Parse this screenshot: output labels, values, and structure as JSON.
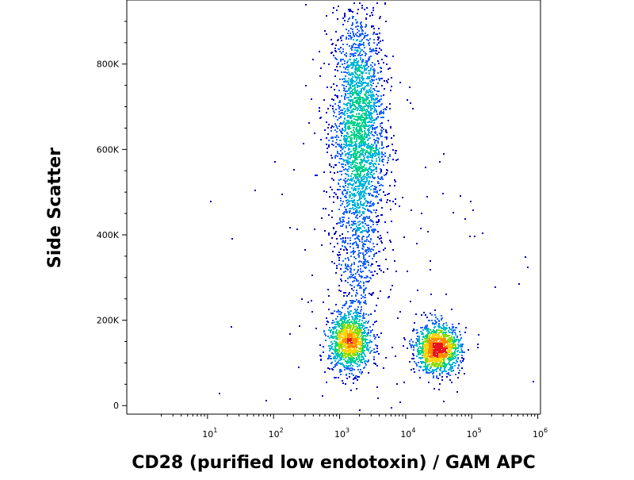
{
  "chart_data": {
    "type": "scatter",
    "subtype": "flow-cytometry-density-dot-plot",
    "xlabel": "CD28 (purified low endotoxin) / GAM APC",
    "ylabel": "Side Scatter",
    "x_scale": "log",
    "xlim": [
      0.6,
      1100000
    ],
    "ylim": [
      -20000,
      950000
    ],
    "x_ticks": [
      {
        "value": 10,
        "base": "10",
        "exp": "1"
      },
      {
        "value": 100,
        "base": "10",
        "exp": "2"
      },
      {
        "value": 1000,
        "base": "10",
        "exp": "3"
      },
      {
        "value": 10000,
        "base": "10",
        "exp": "4"
      },
      {
        "value": 100000,
        "base": "10",
        "exp": "5"
      },
      {
        "value": 1000000,
        "base": "10",
        "exp": "6"
      }
    ],
    "y_ticks": [
      {
        "value": 0,
        "label": "0"
      },
      {
        "value": 200000,
        "label": "200K"
      },
      {
        "value": 400000,
        "label": "400K"
      },
      {
        "value": 600000,
        "label": "600K"
      },
      {
        "value": 800000,
        "label": "800K"
      }
    ],
    "populations": [
      {
        "name": "CD28-negative high side scatter",
        "x_center": 1900,
        "y_center": 640000,
        "x_spread_log": 0.2,
        "y_spread": 150000,
        "events": 2600
      },
      {
        "name": "CD28-negative low side scatter",
        "x_center": 1400,
        "y_center": 150000,
        "x_spread_log": 0.16,
        "y_spread": 35000,
        "events": 1200
      },
      {
        "name": "CD28-positive low side scatter",
        "x_center": 30000,
        "y_center": 135000,
        "x_spread_log": 0.17,
        "y_spread": 28000,
        "events": 1300
      },
      {
        "name": "bridge events",
        "x_center": 1900,
        "y_center": 330000,
        "x_spread_log": 0.15,
        "y_spread": 60000,
        "events": 250
      },
      {
        "name": "scattered background",
        "x_center": 3000,
        "y_center": 350000,
        "x_spread_log": 0.9,
        "y_spread": 250000,
        "events": 160
      }
    ],
    "density_colors": [
      "#0000c8",
      "#1e64ff",
      "#00b4dc",
      "#00d28c",
      "#8cdc00",
      "#ffd200",
      "#ff8c00",
      "#e6141e"
    ]
  }
}
